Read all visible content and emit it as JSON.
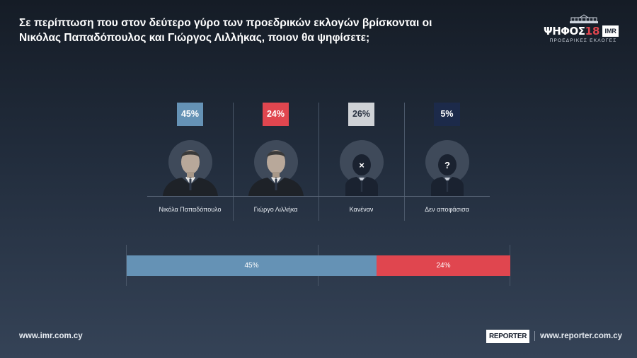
{
  "header": {
    "title": "Σε περίπτωση που στον δεύτερο γύρο των προεδρικών εκλογών βρίσκονται οι Νικόλας Παπαδόπουλος και Γιώργος Λιλλήκας, ποιον θα ψηφίσετε;"
  },
  "logo": {
    "brand": "ΨΗΦΟΣ",
    "number": "18",
    "partner": "IMR",
    "subtitle": "ΠΡΟΕΔΡΙΚΕΣ ΕΚΛΟΓΕΣ"
  },
  "colors": {
    "blue": "#6592b5",
    "red": "#e0464f",
    "grey": "#cfd2d6",
    "navy": "#1c2a4a"
  },
  "chart_data": [
    {
      "type": "bar",
      "categories": [
        "Νικόλα Παπαδόπουλο",
        "Γιώργο Λιλλήκα",
        "Κανέναν",
        "Δεν αποφάσισα"
      ],
      "values": [
        45,
        24,
        26,
        5
      ],
      "value_labels": [
        "45%",
        "24%",
        "26%",
        "5%"
      ],
      "colors": [
        "#6592b5",
        "#e0464f",
        "#cfd2d6",
        "#1c2a4a"
      ],
      "icons": [
        "candidate-photo",
        "candidate-photo",
        "silhouette-x-icon",
        "silhouette-question-icon"
      ]
    },
    {
      "type": "bar",
      "orientation": "horizontal-stacked",
      "series": [
        {
          "value": 45,
          "label": "45%",
          "color": "#6592b5"
        },
        {
          "value": 24,
          "label": "24%",
          "color": "#e0464f"
        }
      ]
    }
  ],
  "footer": {
    "left_url": "www.imr.com.cy",
    "reporter_logo": "REPORTER",
    "right_url": "www.reporter.com.cy"
  }
}
